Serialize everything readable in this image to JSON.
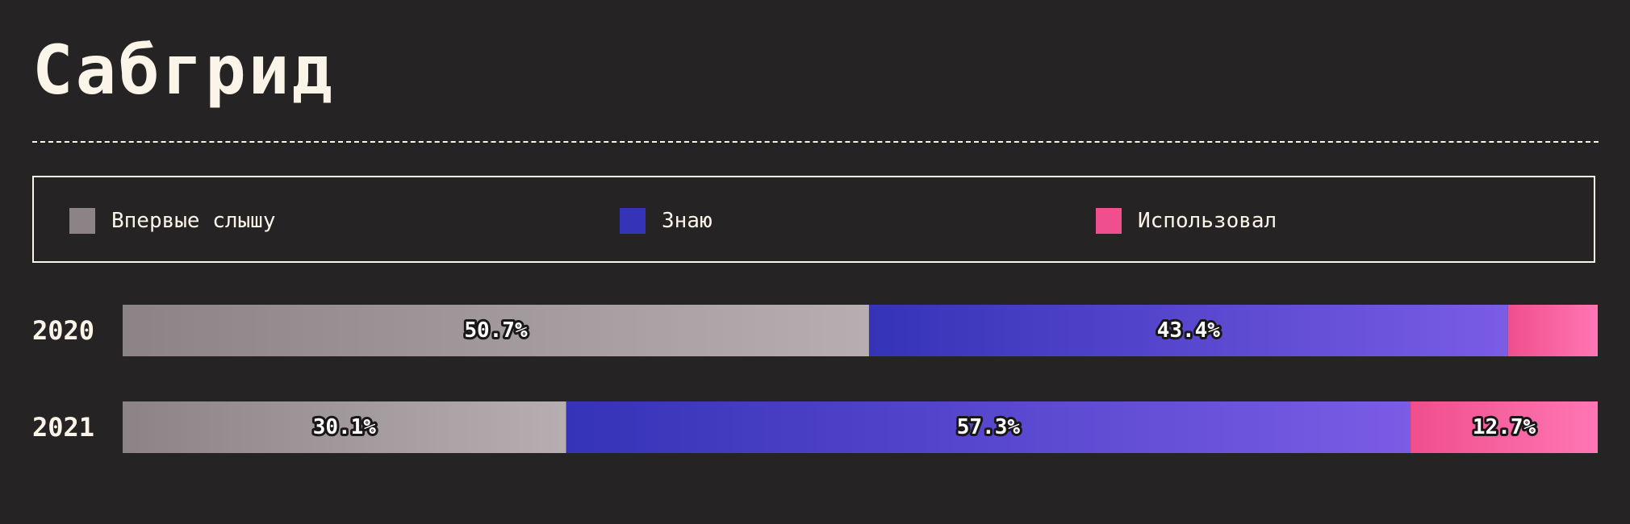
{
  "title": "Сабгрид",
  "chart_data": {
    "type": "bar",
    "orientation": "horizontal",
    "stacked": true,
    "normalized": true,
    "title": "Сабгрид",
    "categories": [
      "2020",
      "2021"
    ],
    "legend_position": "top",
    "grid": false,
    "series": [
      {
        "name": "Впервые слышу",
        "values": [
          50.7,
          30.1
        ],
        "labels": [
          "50.7%",
          "30.1%"
        ],
        "color": "#8c8387",
        "gradient": [
          "#8c8387",
          "#b6aeb1"
        ]
      },
      {
        "name": "Знаю",
        "values": [
          43.4,
          57.3
        ],
        "labels": [
          "43.4%",
          "57.3%"
        ],
        "color": "#3533b7",
        "gradient": [
          "#3533b7",
          "#7a5ce5"
        ]
      },
      {
        "name": "Использовал",
        "values": [
          6.1,
          12.7
        ],
        "labels": [
          "",
          "12.7%"
        ],
        "color": "#ef4f8c",
        "gradient": [
          "#ef4f8c",
          "#ff76b4"
        ]
      }
    ]
  }
}
